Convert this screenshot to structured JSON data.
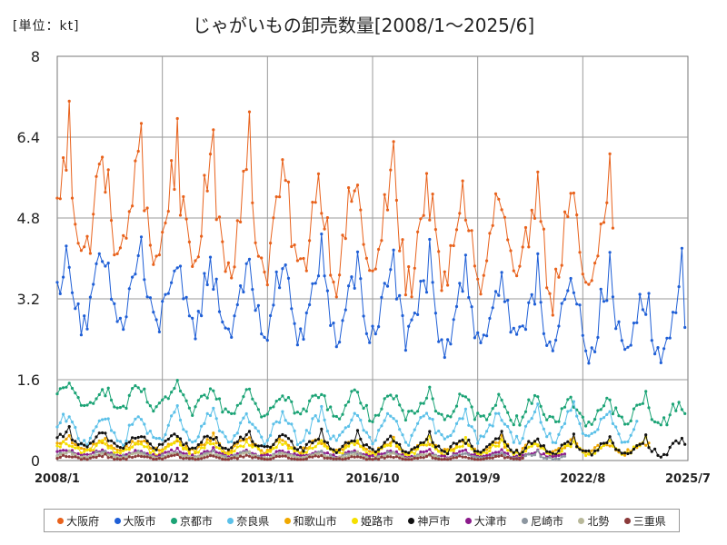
{
  "unit_label": "[単位：kt]",
  "title": "じゃがいもの卸売数量[2008/1～2025/6]",
  "chart_data": {
    "type": "line",
    "title": "じゃがいもの卸売数量[2008/1～2025/6]",
    "unit": "kt",
    "x_start": "2008/1",
    "x_end": "2025/7",
    "xticks": [
      "2008/1",
      "2010/12",
      "2013/11",
      "2016/10",
      "2019/9",
      "2022/8",
      "2025/7"
    ],
    "ylim": [
      0,
      8
    ],
    "yticks": [
      "0",
      "1.6",
      "3.2",
      "4.8",
      "6.4",
      "8"
    ],
    "grid": true,
    "legend_position": "bottom",
    "series": [
      {
        "name": "大阪府",
        "color": "#E8621C",
        "start": "2008/1",
        "end": "2023/6",
        "base": 5.0,
        "amp": 0.9,
        "peak": 6.8,
        "trend": -0.06,
        "jitter": 0.45
      },
      {
        "name": "大阪市",
        "color": "#1F5FD6",
        "start": "2008/1",
        "end": "2025/6",
        "base": 3.35,
        "amp": 0.6,
        "peak": 4.5,
        "trend": -0.04,
        "jitter": 0.35
      },
      {
        "name": "京都市",
        "color": "#1BA375",
        "start": "2008/1",
        "end": "2025/6",
        "base": 1.25,
        "amp": 0.2,
        "peak": 1.6,
        "trend": -0.02,
        "jitter": 0.12
      },
      {
        "name": "奈良県",
        "color": "#5BC0E8",
        "start": "2008/1",
        "end": "2024/2",
        "base": 0.6,
        "amp": 0.25,
        "peak": 1.0,
        "trend": 0.004,
        "jitter": 0.1
      },
      {
        "name": "和歌山市",
        "color": "#F0A800",
        "start": "2008/1",
        "end": "2024/6",
        "base": 0.3,
        "amp": 0.1,
        "peak": 0.5,
        "trend": -0.003,
        "jitter": 0.06
      },
      {
        "name": "姫路市",
        "color": "#F5E000",
        "start": "2008/1",
        "end": "2024/6",
        "base": 0.25,
        "amp": 0.1,
        "peak": 0.45,
        "trend": -0.002,
        "jitter": 0.05
      },
      {
        "name": "神戸市",
        "color": "#111111",
        "start": "2008/1",
        "end": "2025/6",
        "base": 0.4,
        "amp": 0.12,
        "peak": 0.65,
        "trend": -0.01,
        "jitter": 0.06
      },
      {
        "name": "大津市",
        "color": "#8B1A8B",
        "start": "2008/1",
        "end": "2022/2",
        "base": 0.15,
        "amp": 0.05,
        "peak": 0.25,
        "trend": -0.003,
        "jitter": 0.03
      },
      {
        "name": "尼崎市",
        "color": "#8C96A0",
        "start": "2008/1",
        "end": "2022/2",
        "base": 0.12,
        "amp": 0.05,
        "peak": 0.2,
        "trend": -0.003,
        "jitter": 0.03
      },
      {
        "name": "北勢",
        "color": "#B8B89A",
        "start": "2008/1",
        "end": "2018/12",
        "base": 0.1,
        "amp": 0.04,
        "peak": 0.18,
        "trend": -0.002,
        "jitter": 0.02
      },
      {
        "name": "三重県",
        "color": "#8B3A3A",
        "start": "2008/1",
        "end": "2020/12",
        "base": 0.06,
        "amp": 0.03,
        "peak": 0.12,
        "trend": -0.001,
        "jitter": 0.02
      }
    ]
  }
}
